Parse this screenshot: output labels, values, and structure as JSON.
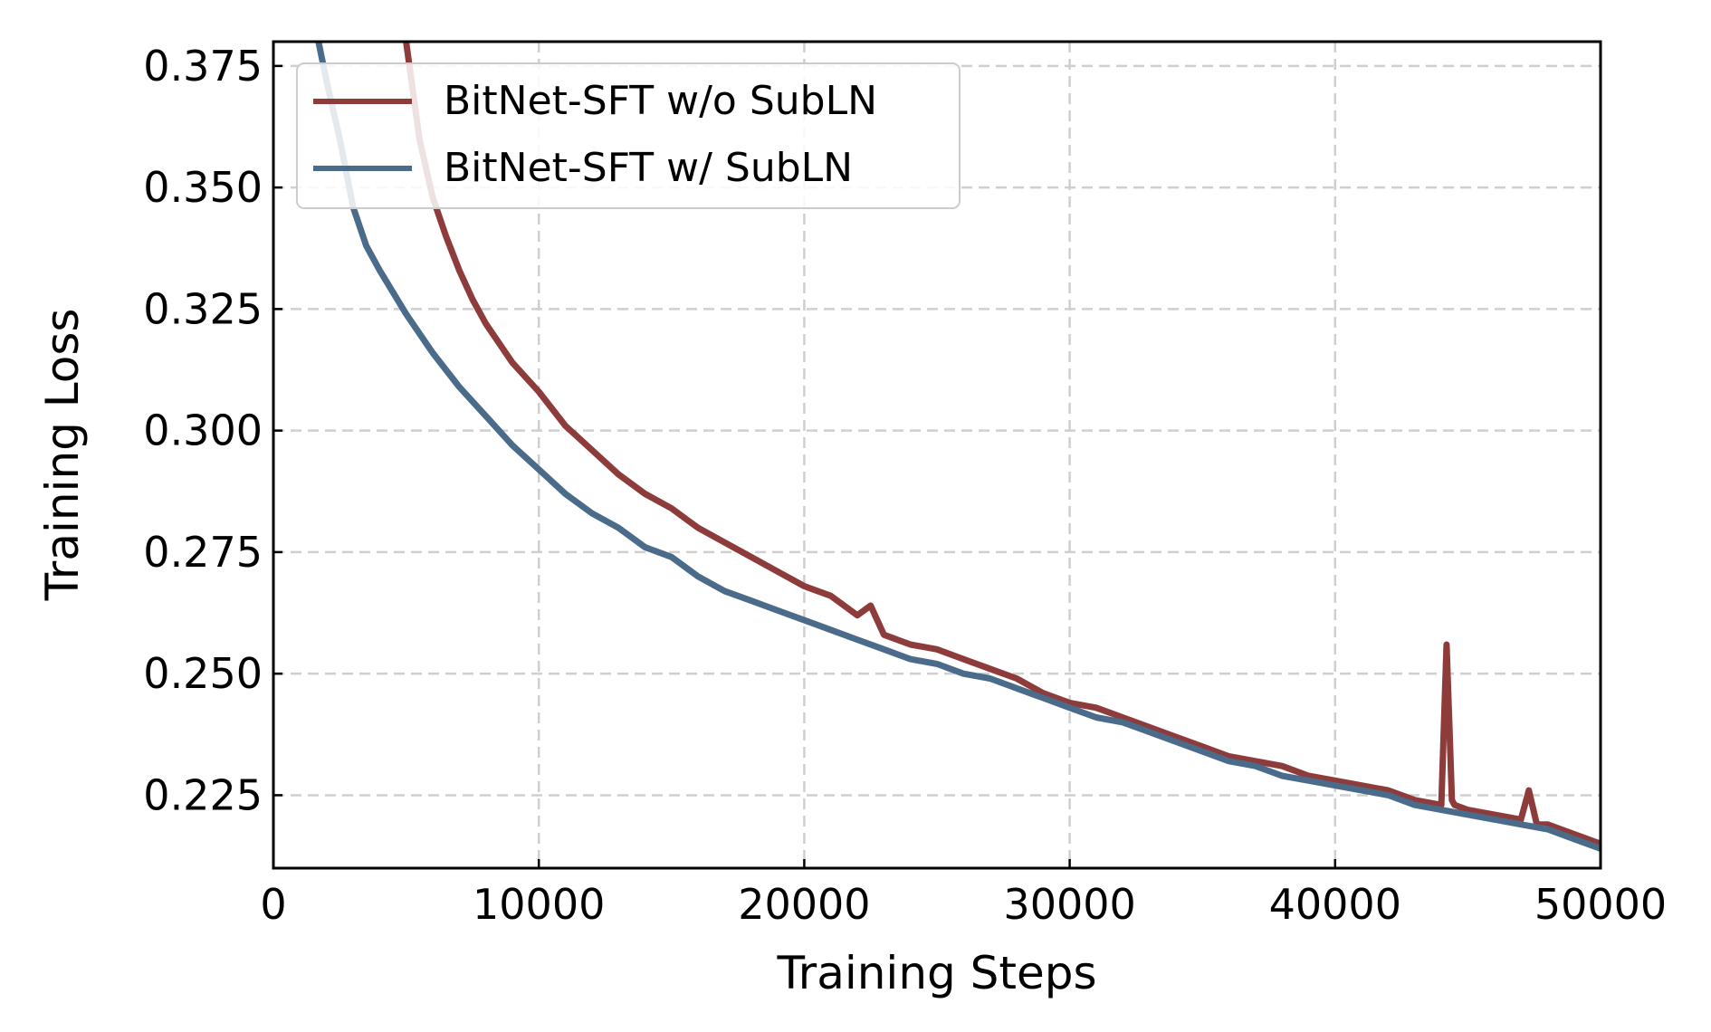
{
  "chart_data": {
    "type": "line",
    "title": "",
    "xlabel": "Training Steps",
    "ylabel": "Training Loss",
    "xlim": [
      0,
      50000
    ],
    "ylim": [
      0.21,
      0.38
    ],
    "xticks": [
      0,
      10000,
      20000,
      30000,
      40000,
      50000
    ],
    "xtick_labels": [
      "0",
      "10000",
      "20000",
      "30000",
      "40000",
      "50000"
    ],
    "yticks": [
      0.225,
      0.25,
      0.275,
      0.3,
      0.325,
      0.35,
      0.375
    ],
    "ytick_labels": [
      "0.225",
      "0.250",
      "0.275",
      "0.300",
      "0.325",
      "0.350",
      "0.375"
    ],
    "grid": true,
    "legend_position": "top-left",
    "series": [
      {
        "name": "BitNet-SFT w/o SubLN",
        "color": "#8e3b3b",
        "x": [
          5000,
          5500,
          6000,
          6500,
          7000,
          7500,
          8000,
          9000,
          10000,
          11000,
          12000,
          13000,
          14000,
          15000,
          16000,
          17000,
          18000,
          19000,
          20000,
          21000,
          22000,
          22500,
          23000,
          24000,
          25000,
          26000,
          27000,
          28000,
          29000,
          30000,
          31000,
          32000,
          33000,
          34000,
          35000,
          36000,
          37000,
          38000,
          39000,
          40000,
          41000,
          42000,
          43000,
          44000,
          44200,
          44300,
          44400,
          44500,
          45000,
          46000,
          47000,
          47300,
          47600,
          48000,
          49000,
          50000
        ],
        "values": [
          0.38,
          0.36,
          0.348,
          0.34,
          0.333,
          0.327,
          0.322,
          0.314,
          0.308,
          0.301,
          0.296,
          0.291,
          0.287,
          0.284,
          0.28,
          0.277,
          0.274,
          0.271,
          0.268,
          0.266,
          0.262,
          0.264,
          0.258,
          0.256,
          0.255,
          0.253,
          0.251,
          0.249,
          0.246,
          0.244,
          0.243,
          0.241,
          0.239,
          0.237,
          0.235,
          0.233,
          0.232,
          0.231,
          0.229,
          0.228,
          0.227,
          0.226,
          0.224,
          0.223,
          0.256,
          0.24,
          0.224,
          0.223,
          0.222,
          0.221,
          0.22,
          0.226,
          0.219,
          0.219,
          0.217,
          0.215
        ]
      },
      {
        "name": "BitNet-SFT w/ SubLN",
        "color": "#4a6b8a",
        "x": [
          1700,
          2000,
          2500,
          3000,
          3500,
          4000,
          5000,
          6000,
          7000,
          8000,
          9000,
          10000,
          11000,
          12000,
          13000,
          14000,
          15000,
          16000,
          17000,
          18000,
          19000,
          20000,
          21000,
          22000,
          23000,
          24000,
          25000,
          26000,
          27000,
          28000,
          29000,
          30000,
          31000,
          32000,
          33000,
          34000,
          35000,
          36000,
          37000,
          38000,
          39000,
          40000,
          41000,
          42000,
          43000,
          44000,
          45000,
          46000,
          47000,
          48000,
          49000,
          50000
        ],
        "values": [
          0.38,
          0.372,
          0.36,
          0.346,
          0.338,
          0.333,
          0.324,
          0.316,
          0.309,
          0.303,
          0.297,
          0.292,
          0.287,
          0.283,
          0.28,
          0.276,
          0.274,
          0.27,
          0.267,
          0.265,
          0.263,
          0.261,
          0.259,
          0.257,
          0.255,
          0.253,
          0.252,
          0.25,
          0.249,
          0.247,
          0.245,
          0.243,
          0.241,
          0.24,
          0.238,
          0.236,
          0.234,
          0.232,
          0.231,
          0.229,
          0.228,
          0.227,
          0.226,
          0.225,
          0.223,
          0.222,
          0.221,
          0.22,
          0.219,
          0.218,
          0.216,
          0.214
        ]
      }
    ]
  }
}
